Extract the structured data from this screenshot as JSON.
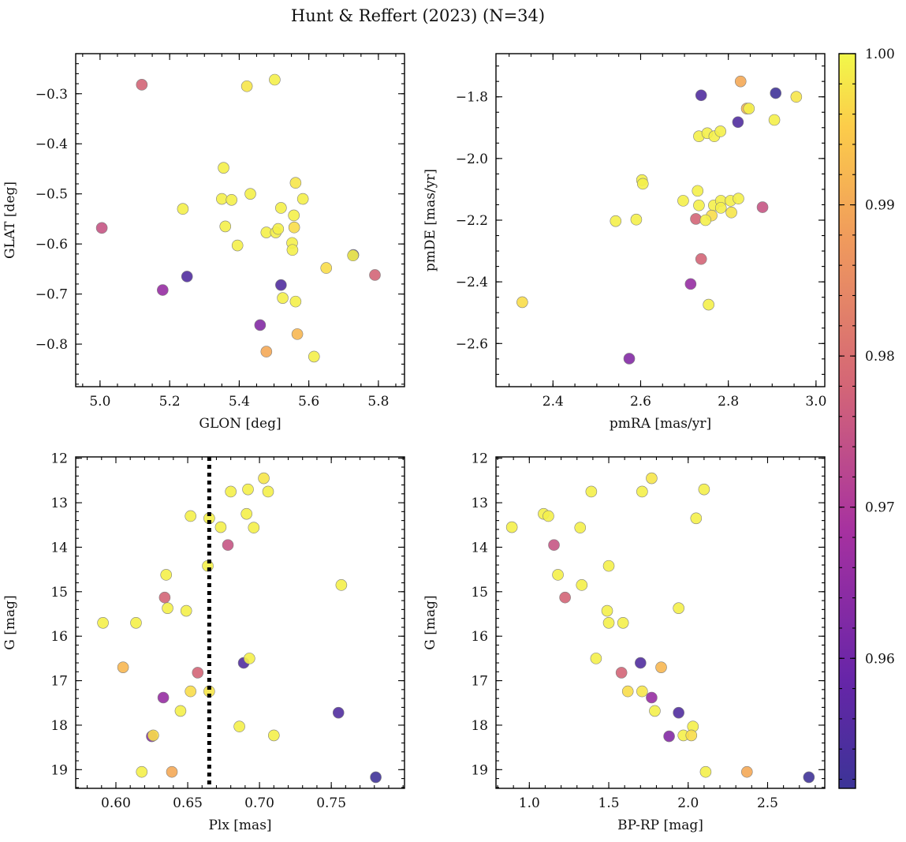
{
  "chart_data": {
    "type": "scatter",
    "title": "Hunt & Reffert (2023) (N=34)",
    "colorbar": {
      "min": 0.9514,
      "max": 1.0,
      "ticks": [
        0.96,
        0.97,
        0.98,
        0.99,
        1.0
      ],
      "tick_labels": [
        "0.96",
        "0.97",
        "0.98",
        "0.99",
        "1.00"
      ],
      "colormap": "plasma"
    },
    "stars": [
      {
        "glon": 5.12,
        "glat": -0.282,
        "pmra": 2.726,
        "pmde": -2.196,
        "plx": 0.634,
        "g": 15.13,
        "bprp": 1.225,
        "p": 0.978
      },
      {
        "glon": 5.005,
        "glat": -0.568,
        "pmra": 2.878,
        "pmde": -2.158,
        "plx": 0.678,
        "g": 13.95,
        "bprp": 1.155,
        "p": 0.975
      },
      {
        "glon": 5.18,
        "glat": -0.692,
        "pmra": 2.714,
        "pmde": -2.407,
        "plx": 0.633,
        "g": 17.38,
        "bprp": 1.77,
        "p": 0.966
      },
      {
        "glon": 5.25,
        "glat": -0.665,
        "pmra": 2.738,
        "pmde": -1.795,
        "plx": 0.689,
        "g": 16.6,
        "bprp": 1.7,
        "p": 0.955
      },
      {
        "glon": 5.52,
        "glat": -0.682,
        "pmra": 2.822,
        "pmde": -1.882,
        "plx": 0.755,
        "g": 17.72,
        "bprp": 1.94,
        "p": 0.955
      },
      {
        "glon": 5.46,
        "glat": -0.762,
        "pmra": 2.574,
        "pmde": -2.649,
        "plx": 0.625,
        "g": 18.25,
        "bprp": 1.88,
        "p": 0.963
      },
      {
        "glon": 5.478,
        "glat": -0.815,
        "pmra": 2.828,
        "pmde": -1.75,
        "plx": 0.639,
        "g": 19.05,
        "bprp": 2.37,
        "p": 0.99
      },
      {
        "glon": 5.567,
        "glat": -0.78,
        "pmra": 2.842,
        "pmde": -1.838,
        "plx": 0.605,
        "g": 16.7,
        "bprp": 1.83,
        "p": 0.992
      },
      {
        "glon": 5.79,
        "glat": -0.662,
        "pmra": 2.738,
        "pmde": -2.326,
        "plx": 0.657,
        "g": 16.82,
        "bprp": 1.58,
        "p": 0.978
      },
      {
        "glon": 5.728,
        "glat": -0.622,
        "pmra": 2.908,
        "pmde": -1.788,
        "plx": 0.781,
        "g": 19.17,
        "bprp": 2.76,
        "p": 0.952
      },
      {
        "glon": 5.422,
        "glat": -0.285,
        "pmra": 2.955,
        "pmde": -1.8,
        "plx": 0.703,
        "g": 12.45,
        "bprp": 1.77,
        "p": 0.998
      },
      {
        "glon": 5.502,
        "glat": -0.272,
        "pmra": 2.905,
        "pmde": -1.875,
        "plx": 0.68,
        "g": 12.75,
        "bprp": 1.39,
        "p": 0.999
      },
      {
        "glon": 5.238,
        "glat": -0.53,
        "pmra": 2.733,
        "pmde": -1.928,
        "plx": 0.692,
        "g": 12.7,
        "bprp": 2.1,
        "p": 0.999
      },
      {
        "glon": 5.355,
        "glat": -0.448,
        "pmra": 2.752,
        "pmde": -1.918,
        "plx": 0.706,
        "g": 12.75,
        "bprp": 1.71,
        "p": 0.999
      },
      {
        "glon": 5.35,
        "glat": -0.51,
        "pmra": 2.768,
        "pmde": -1.928,
        "plx": 0.691,
        "g": 13.25,
        "bprp": 1.09,
        "p": 0.999
      },
      {
        "glon": 5.36,
        "glat": -0.565,
        "pmra": 2.782,
        "pmde": -1.912,
        "plx": 0.652,
        "g": 13.3,
        "bprp": 1.12,
        "p": 0.999
      },
      {
        "glon": 5.378,
        "glat": -0.512,
        "pmra": 2.847,
        "pmde": -1.838,
        "plx": 0.665,
        "g": 13.35,
        "bprp": 2.05,
        "p": 0.999
      },
      {
        "glon": 5.395,
        "glat": -0.603,
        "pmra": 2.603,
        "pmde": -2.07,
        "plx": 0.673,
        "g": 13.55,
        "bprp": 0.89,
        "p": 0.999
      },
      {
        "glon": 5.432,
        "glat": -0.5,
        "pmra": 2.605,
        "pmde": -2.082,
        "plx": 0.696,
        "g": 13.56,
        "bprp": 1.32,
        "p": 0.999
      },
      {
        "glon": 5.478,
        "glat": -0.577,
        "pmra": 2.697,
        "pmde": -2.137,
        "plx": 0.635,
        "g": 14.62,
        "bprp": 1.18,
        "p": 0.999
      },
      {
        "glon": 5.505,
        "glat": -0.577,
        "pmra": 2.73,
        "pmde": -2.105,
        "plx": 0.664,
        "g": 14.42,
        "bprp": 1.5,
        "p": 0.999
      },
      {
        "glon": 5.512,
        "glat": -0.57,
        "pmra": 2.733,
        "pmde": -2.152,
        "plx": 0.757,
        "g": 14.85,
        "bprp": 1.33,
        "p": 0.999
      },
      {
        "glon": 5.52,
        "glat": -0.528,
        "pmra": 2.767,
        "pmde": -2.152,
        "plx": 0.636,
        "g": 15.37,
        "bprp": 1.94,
        "p": 0.999
      },
      {
        "glon": 5.525,
        "glat": -0.708,
        "pmra": 2.783,
        "pmde": -2.137,
        "plx": 0.649,
        "g": 15.43,
        "bprp": 1.49,
        "p": 0.999
      },
      {
        "glon": 5.552,
        "glat": -0.598,
        "pmra": 2.783,
        "pmde": -2.16,
        "plx": 0.591,
        "g": 15.7,
        "bprp": 1.5,
        "p": 0.999
      },
      {
        "glon": 5.553,
        "glat": -0.612,
        "pmra": 2.805,
        "pmde": -2.137,
        "plx": 0.614,
        "g": 15.7,
        "bprp": 1.59,
        "p": 0.999
      },
      {
        "glon": 5.557,
        "glat": -0.543,
        "pmra": 2.823,
        "pmde": -2.13,
        "plx": 0.693,
        "g": 16.5,
        "bprp": 1.42,
        "p": 0.999
      },
      {
        "glon": 5.558,
        "glat": -0.567,
        "pmra": 2.762,
        "pmde": -2.185,
        "plx": 0.652,
        "g": 17.24,
        "bprp": 1.62,
        "p": 0.997
      },
      {
        "glon": 5.562,
        "glat": -0.478,
        "pmra": 2.807,
        "pmde": -2.175,
        "plx": 0.665,
        "g": 17.24,
        "bprp": 1.71,
        "p": 0.998
      },
      {
        "glon": 5.562,
        "glat": -0.715,
        "pmra": 2.748,
        "pmde": -2.2,
        "plx": 0.645,
        "g": 17.68,
        "bprp": 1.79,
        "p": 0.999
      },
      {
        "glon": 5.583,
        "glat": -0.51,
        "pmra": 2.543,
        "pmde": -2.203,
        "plx": 0.686,
        "g": 18.03,
        "bprp": 2.03,
        "p": 0.999
      },
      {
        "glon": 5.615,
        "glat": -0.825,
        "pmra": 2.59,
        "pmde": -2.198,
        "plx": 0.71,
        "g": 18.23,
        "bprp": 1.97,
        "p": 0.999
      },
      {
        "glon": 5.65,
        "glat": -0.648,
        "pmra": 2.33,
        "pmde": -2.466,
        "plx": 0.626,
        "g": 18.23,
        "bprp": 2.02,
        "p": 0.997
      },
      {
        "glon": 5.727,
        "glat": -0.623,
        "pmra": 2.755,
        "pmde": -2.474,
        "plx": 0.618,
        "g": 19.05,
        "bprp": 2.11,
        "p": 0.999
      }
    ],
    "panels": [
      {
        "id": "glon-glat",
        "x_field": "glon",
        "y_field": "glat",
        "xlabel": "GLON [deg]",
        "ylabel": "GLAT [deg]",
        "xlim": [
          4.93,
          5.875
        ],
        "ylim": [
          -0.885,
          -0.22
        ],
        "y_inverted": false,
        "xticks": [
          5.0,
          5.2,
          5.4,
          5.6,
          5.8
        ],
        "xtick_labels": [
          "5.0",
          "5.2",
          "5.4",
          "5.6",
          "5.8"
        ],
        "yticks": [
          -0.3,
          -0.4,
          -0.5,
          -0.6,
          -0.7,
          -0.8
        ],
        "ytick_labels": [
          "−0.3",
          "−0.4",
          "−0.5",
          "−0.6",
          "−0.7",
          "−0.8"
        ],
        "xminor": 0.05,
        "yminor": 0.02
      },
      {
        "id": "pmra-pmde",
        "x_field": "pmra",
        "y_field": "pmde",
        "xlabel": "pmRA [mas/yr]",
        "ylabel": "pmDE [mas/yr]",
        "xlim": [
          2.27,
          3.02
        ],
        "ylim": [
          -2.74,
          -1.66
        ],
        "y_inverted": false,
        "xticks": [
          2.4,
          2.6,
          2.8,
          3.0
        ],
        "xtick_labels": [
          "2.4",
          "2.6",
          "2.8",
          "3.0"
        ],
        "yticks": [
          -1.8,
          -2.0,
          -2.2,
          -2.4,
          -2.6
        ],
        "ytick_labels": [
          "−1.8",
          "−2.0",
          "−2.2",
          "−2.4",
          "−2.6"
        ],
        "xminor": 0.05,
        "yminor": 0.05
      },
      {
        "id": "plx-g",
        "x_field": "plx",
        "y_field": "g",
        "xlabel": "Plx [mas]",
        "ylabel": "G [mag]",
        "xlim": [
          0.572,
          0.801
        ],
        "ylim": [
          11.97,
          19.42
        ],
        "y_inverted": true,
        "xticks": [
          0.6,
          0.65,
          0.7,
          0.75
        ],
        "xtick_labels": [
          "0.60",
          "0.65",
          "0.70",
          "0.75"
        ],
        "yticks": [
          12,
          13,
          14,
          15,
          16,
          17,
          18,
          19
        ],
        "ytick_labels": [
          "12",
          "13",
          "14",
          "15",
          "16",
          "17",
          "18",
          "19"
        ],
        "xminor": 0.01,
        "yminor": 0.2,
        "vline": 0.665
      },
      {
        "id": "bprp-g",
        "x_field": "bprp",
        "y_field": "g",
        "xlabel": "BP-RP [mag]",
        "ylabel": "G [mag]",
        "xlim": [
          0.79,
          2.86
        ],
        "ylim": [
          11.97,
          19.42
        ],
        "y_inverted": true,
        "xticks": [
          1.0,
          1.5,
          2.0,
          2.5
        ],
        "xtick_labels": [
          "1.0",
          "1.5",
          "2.0",
          "2.5"
        ],
        "yticks": [
          12,
          13,
          14,
          15,
          16,
          17,
          18,
          19
        ],
        "ytick_labels": [
          "12",
          "13",
          "14",
          "15",
          "16",
          "17",
          "18",
          "19"
        ],
        "xminor": 0.1,
        "yminor": 0.2
      }
    ]
  }
}
